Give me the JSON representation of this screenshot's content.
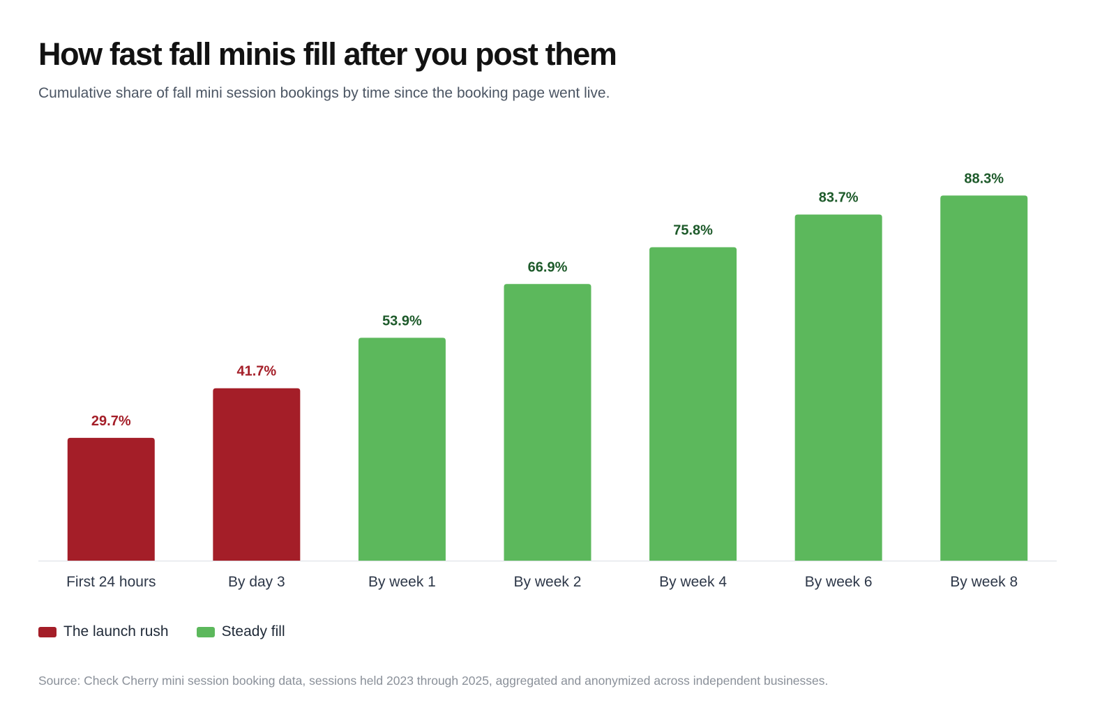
{
  "title": "How fast fall minis fill after you post them",
  "subtitle": "Cumulative share of fall mini session bookings by time since the booking page went live.",
  "source": "Source: Check Cherry mini session booking data, sessions held 2023 through 2025, aggregated and anonymized across independent businesses.",
  "legend": [
    {
      "label": "The launch rush",
      "color": "#a41e28"
    },
    {
      "label": "Steady fill",
      "color": "#5cb85c"
    }
  ],
  "chart_data": {
    "type": "bar",
    "title": "How fast fall minis fill after you post them",
    "subtitle": "Cumulative share of fall mini session bookings by time since the booking page went live.",
    "xlabel": "",
    "ylabel": "",
    "ylim": [
      0,
      100
    ],
    "unit": "%",
    "grid": false,
    "legend_position": "bottom-left",
    "categories": [
      "First 24 hours",
      "By day 3",
      "By week 1",
      "By week 2",
      "By week 4",
      "By week 6",
      "By week 8"
    ],
    "values": [
      29.7,
      41.7,
      53.9,
      66.9,
      75.8,
      83.7,
      88.3
    ],
    "value_labels": [
      "29.7%",
      "41.7%",
      "53.9%",
      "66.9%",
      "75.8%",
      "83.7%",
      "88.3%"
    ],
    "groups": [
      "The launch rush",
      "The launch rush",
      "Steady fill",
      "Steady fill",
      "Steady fill",
      "Steady fill",
      "Steady fill"
    ],
    "colors": {
      "The launch rush": {
        "bar": "#a41e28",
        "label": "#a41e28"
      },
      "Steady fill": {
        "bar": "#5cb85c",
        "label": "#1d5a2a"
      }
    }
  }
}
